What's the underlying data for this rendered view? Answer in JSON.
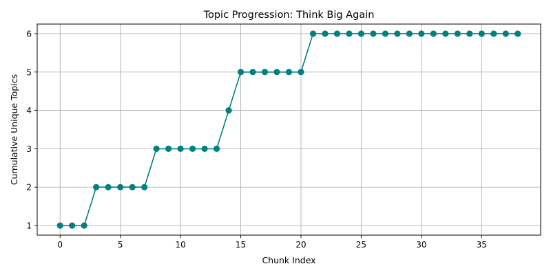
{
  "chart_data": {
    "type": "line",
    "title": "Topic Progression: Think Big Again",
    "xlabel": "Chunk Index",
    "ylabel": "Cumulative Unique Topics",
    "x": [
      0,
      1,
      2,
      3,
      4,
      5,
      6,
      7,
      8,
      9,
      10,
      11,
      12,
      13,
      14,
      15,
      16,
      17,
      18,
      19,
      20,
      21,
      22,
      23,
      24,
      25,
      26,
      27,
      28,
      29,
      30,
      31,
      32,
      33,
      34,
      35,
      36,
      37,
      38
    ],
    "series": [
      {
        "values": [
          1,
          1,
          1,
          2,
          2,
          2,
          2,
          2,
          3,
          3,
          3,
          3,
          3,
          3,
          4,
          5,
          5,
          5,
          5,
          5,
          5,
          6,
          6,
          6,
          6,
          6,
          6,
          6,
          6,
          6,
          6,
          6,
          6,
          6,
          6,
          6,
          6,
          6,
          6
        ],
        "color": "#008080",
        "marker": "circle"
      }
    ],
    "xlim": [
      -1.9,
      39.9
    ],
    "ylim": [
      0.75,
      6.25
    ],
    "xticks": [
      0,
      5,
      10,
      15,
      20,
      25,
      30,
      35
    ],
    "yticks": [
      1,
      2,
      3,
      4,
      5,
      6
    ],
    "grid": true
  }
}
